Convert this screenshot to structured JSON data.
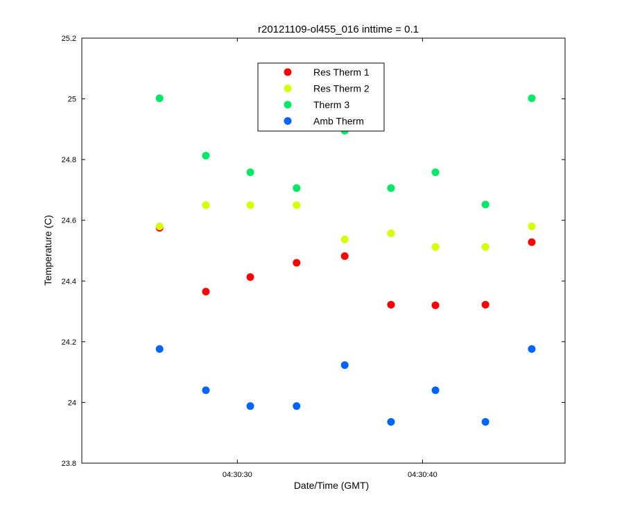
{
  "chart_data": {
    "type": "scatter",
    "title": "r20121109-ol455_016 inttime = 0.1",
    "xlabel": "Date/Time (GMT)",
    "ylabel": "Temperature (C)",
    "xlim": [
      "04:30:21.6",
      "04:30:47.7"
    ],
    "ylim": [
      23.8,
      25.2
    ],
    "x_ticks": [
      "04:30:30",
      "04:30:40"
    ],
    "y_ticks": [
      "23.8",
      "24",
      "24.2",
      "24.4",
      "24.6",
      "24.8",
      "25",
      "25.2"
    ],
    "grid": false,
    "legend_position": "top-center",
    "x": [
      "04:30:25.8",
      "04:30:28.3",
      "04:30:30.7",
      "04:30:33.2",
      "04:30:35.8",
      "04:30:38.3",
      "04:30:40.7",
      "04:30:43.4",
      "04:30:45.9"
    ],
    "series": [
      {
        "name": "Res Therm 1",
        "color": "#ff0000",
        "values": [
          24.575,
          24.365,
          24.413,
          24.46,
          24.482,
          24.322,
          24.32,
          24.322,
          24.528
        ]
      },
      {
        "name": "Res Therm 2",
        "color": "#d4ff00",
        "values": [
          24.58,
          24.65,
          24.65,
          24.65,
          24.537,
          24.557,
          24.512,
          24.512,
          24.58
        ]
      },
      {
        "name": "Therm 3",
        "color": "#00e864",
        "values": [
          25.002,
          24.813,
          24.758,
          24.706,
          24.895,
          24.706,
          24.758,
          24.652,
          25.002
        ]
      },
      {
        "name": "Amb Therm",
        "color": "#0064ff",
        "values": [
          24.176,
          24.04,
          23.988,
          23.988,
          24.123,
          23.936,
          24.04,
          23.936,
          24.176
        ]
      }
    ]
  }
}
